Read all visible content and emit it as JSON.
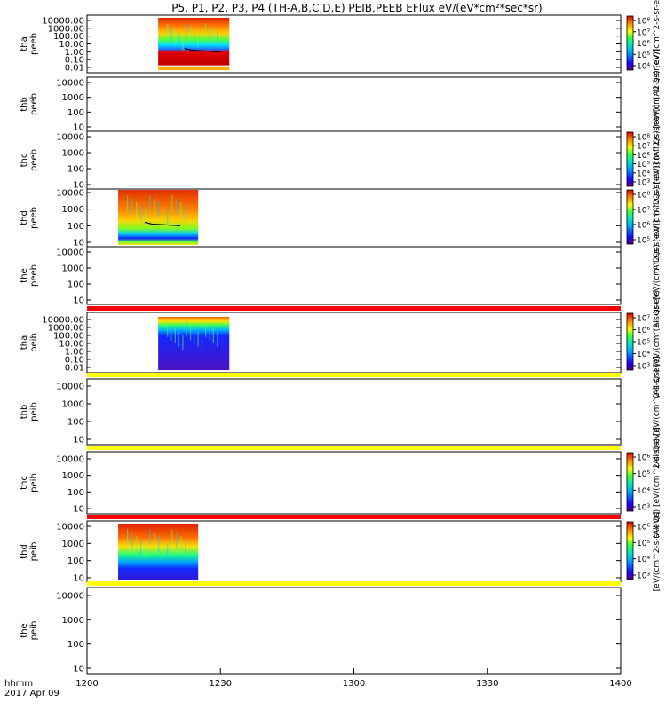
{
  "title": "P5, P1, P2, P3, P4 (TH-A,B,C,D,E) PEIB,PEEB EFlux eV/(eV*cm²*sec*sr)",
  "chart_data": {
    "type": "heatmap",
    "x_axis": {
      "range": [
        "12:00",
        "14:00"
      ],
      "tick_labels": [
        "1200",
        "1230",
        "1300",
        "1330",
        "1400"
      ],
      "label_left": "hhmm",
      "date": "2017 Apr 09"
    },
    "panels": [
      {
        "probe": "tha",
        "product": "peeb",
        "y_ticks": [
          "10000.00",
          "1000.00",
          "100.00",
          "10.00",
          "1.00",
          "0.10",
          "0.01"
        ],
        "data_start": "12:16",
        "data_end": "12:32",
        "colorbar": true,
        "cb_ticks": [
          "10⁸",
          "10⁷",
          "10⁶",
          "10⁵",
          "10⁴"
        ],
        "cb_label": "(All Qs) [eV/(cm^2-s-sr-eV)]",
        "bar_above": ""
      },
      {
        "probe": "thb",
        "product": "peeb",
        "y_ticks": [
          "10000",
          "1000",
          "100",
          "10"
        ],
        "data_start": "",
        "data_end": "",
        "colorbar": false,
        "cb_ticks": [],
        "cb_label": "(All Qs) [eV/(cm^2-s-sr-eV)]",
        "bar_above": ""
      },
      {
        "probe": "thc",
        "product": "peeb",
        "y_ticks": [
          "10000",
          "1000",
          "100",
          "10"
        ],
        "data_start": "",
        "data_end": "",
        "colorbar": true,
        "cb_ticks": [
          "10⁸",
          "10⁷",
          "10⁶",
          "10⁵",
          "10⁴",
          "10³"
        ],
        "cb_label": "(All Qs) [eV/(cm^2-s-sr-eV)]",
        "bar_above": ""
      },
      {
        "probe": "thd",
        "product": "peeb",
        "y_ticks": [
          "10000",
          "1000",
          "100",
          "10"
        ],
        "data_start": "12:07",
        "data_end": "12:25",
        "colorbar": true,
        "cb_ticks": [
          "10⁸",
          "10⁷",
          "10⁶",
          "10⁵"
        ],
        "cb_label": "(All Qs) [eV/(cm^2-s-sr-eV)]",
        "bar_above": ""
      },
      {
        "probe": "the",
        "product": "peeb",
        "y_ticks": [
          "10000",
          "1000",
          "100",
          "10"
        ],
        "data_start": "",
        "data_end": "",
        "colorbar": false,
        "cb_ticks": [],
        "cb_label": "(All Qs) [eV/(cm^2-s-sr-eV)]",
        "bar_above": ""
      },
      {
        "probe": "tha",
        "product": "peib",
        "y_ticks": [
          "10000.00",
          "1000.00",
          "100.00",
          "10.00",
          "1.00",
          "0.10",
          "0.01"
        ],
        "data_start": "12:16",
        "data_end": "12:32",
        "colorbar": true,
        "cb_ticks": [
          "10⁷",
          "10⁶",
          "10⁵",
          "10⁴",
          "10³"
        ],
        "cb_label": "(All Qs) [eV/(cm^2-s-sr-eV)]",
        "bar_above": "red"
      },
      {
        "probe": "thb",
        "product": "peib",
        "y_ticks": [
          "10000",
          "1000",
          "100",
          "10"
        ],
        "data_start": "",
        "data_end": "",
        "colorbar": false,
        "cb_ticks": [],
        "cb_label": "(All Qs) [eV/(cm^2-s-sr-eV)]",
        "bar_above": "yellow"
      },
      {
        "probe": "thc",
        "product": "peib",
        "y_ticks": [
          "10000",
          "1000",
          "100",
          "10"
        ],
        "data_start": "",
        "data_end": "",
        "colorbar": true,
        "cb_ticks": [
          "10⁶",
          "10⁵",
          "10⁴",
          "10³"
        ],
        "cb_label": "(All Qs) [eV/(cm^2-s-sr-eV)]",
        "bar_above": "yellow"
      },
      {
        "probe": "thd",
        "product": "peib",
        "y_ticks": [
          "10000",
          "1000",
          "100",
          "10"
        ],
        "data_start": "12:07",
        "data_end": "12:25",
        "colorbar": true,
        "cb_ticks": [
          "10⁶",
          "10⁵",
          "10⁴",
          "10³"
        ],
        "cb_label": "[eV/(cm^2-s-sr-eV)]",
        "bar_above": "red"
      },
      {
        "probe": "the",
        "product": "peib",
        "y_ticks": [
          "10000",
          "1000",
          "100",
          "10"
        ],
        "data_start": "",
        "data_end": "",
        "colorbar": false,
        "cb_ticks": [],
        "cb_label": "",
        "bar_above": "yellow"
      }
    ]
  }
}
